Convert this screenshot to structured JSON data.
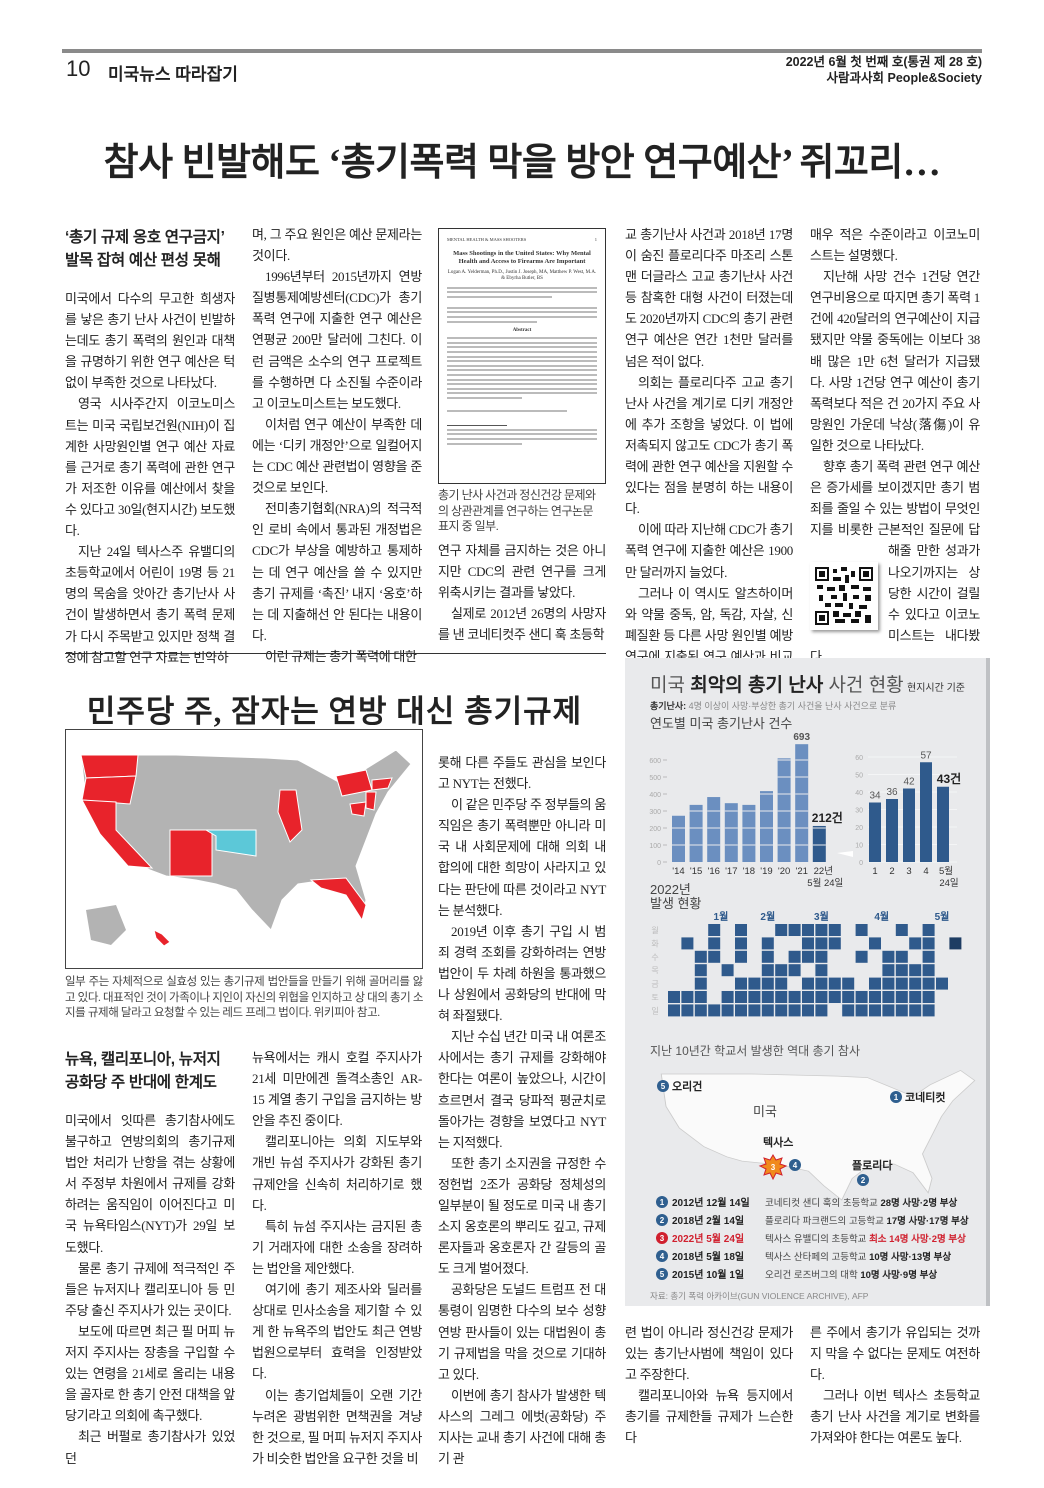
{
  "header": {
    "page_number": "10",
    "section": "미국뉴스 따라잡기",
    "issue": "2022년 6월 첫 번째 호(통권 제 28 호)",
    "publication": "사람과사회 People&Society"
  },
  "article1": {
    "headline": "참사 빈발해도 ‘총기폭력 막을 방안 연구예산’ 쥐꼬리…",
    "subhead": [
      "‘총기 규제 옹호 연구금지’",
      "발목 잡혀 예산 편성 못해"
    ],
    "columns": [
      [
        "미국에서 다수의 무고한 희생자를 낳은 총기 난사 사건이 빈발하는데도 총기 폭력의 원인과 대책을 규명하기 위한 연구 예산은 턱없이 부족한 것으로 나타났다.",
        "영국 시사주간지 이코노미스트는 미국 국립보건원(NIH)이 집계한 사망원인별 연구 예산 자료를 근거로 총기 폭력에 관한 연구가 저조한 이유를 예산에서 찾을 수 있다고 30일(현지시간) 보도했다.",
        "지난 24일 텍사스주 유밸디의 초등학교에서 어린이 19명 등 21명의 목숨을 앗아간 총기난사 사건이 발생하면서 총기 폭력 문제가 다시 주목받고 있지만 정책 결정에 참고할 연구 자료는 빈약하"
      ],
      [
        "며, 그 주요 원인은 예산 문제라는 것이다.",
        "1996년부터 2015년까지 연방 질병통제예방센터(CDC)가 총기 폭력 연구에 지출한 연구 예산은 연평균 200만 달러에 그친다. 이런 금액은 소수의 연구 프로젝트를 수행하면 다 소진될 수준이라고 이코노미스트는 보도했다.",
        "이처럼 연구 예산이 부족한 데에는 ‘디키 개정안’으로 일컬어지는 CDC 예산 관련법이 영향을 준 것으로 보인다.",
        "전미총기협회(NRA)의 적극적인 로비 속에서 통과된 개정법은 CDC가 부상을 예방하고 통제하는 데 연구 예산을 쓸 수 있지만 총기 규제를 ‘촉진’ 내지 ‘옹호’하는 데 지출해선 안 된다는 내용이다.",
        "이런 규제는 총기 폭력에 대한"
      ],
      [
        "연구 자체를 금지하는 것은 아니지만 CDC의 관련 연구를 크게 위축시키는 결과를 낳았다.",
        "실제로 2012년 26명의 사망자를 낸 코네티컷주 샌디 훅 초등학"
      ],
      [
        "교 총기난사 사건과 2018년 17명이 숨진 플로리다주 마조리 스톤맨 더글라스 고교 총기난사 사건 등 참혹한 대형 사건이 터졌는데도 2020년까지 CDC의 총기 관련 연구 예산은 연간 1천만 달러를 넘은 적이 없다.",
        "의회는 플로리다주 고교 총기난사 사건을 계기로 디키 개정안에 추가 조항을 넣었다. 이 법에 저촉되지 않고도 CDC가 총기 폭력에 관한 연구 예산을 지원할 수 있다는 점을 분명히 하는 내용이다.",
        "이에 따라 지난해 CDC가 총기 폭력 연구에 지출한 예산은 1900만 달러까지 늘었다.",
        "그러나 이 역시도 알츠하이머와 약물 중독, 암, 독감, 자살, 신폐질환 등 다른 사망 원인별 예방 연구에 지출된 연구 예산과 비교하면"
      ],
      [
        "매우 적은 수준이라고 이코노미스트는 설명했다.",
        "지난해 사망 건수 1건당 연간 연구비용으로 따지면 총기 폭력 1건에 420달러의 연구예산이 지급됐지만 약물 중독에는 이보다 38배 많은 1만 6천 달러가 지급됐다. 사망 1건당 연구 예산이 총기 폭력보다 적은 건 20가지 주요 사망원인 가운데 낙상(落傷)이 유일한 것으로 나타났다.",
        "향후 총기 폭력 관련 연구 예산은 증가세를 보이겠지만 총기 범죄를 줄일 수 있는 방법이 무엇인지를 비롯한 근본적인 질문에 답해줄 만한 성과가 나오기까지는 상당한 시간이 걸릴 수 있다고 이코노미스트는 내다봤다."
      ]
    ],
    "figure": {
      "running_head": "MENTAL HEALTH & MASS SHOOTERS",
      "page": "1",
      "title": "Mass Shootings in the United States: Why Mental Health and Access to Firearms Are Important",
      "authors": "Logan A. Yelderman, Ph.D., Justin J. Joseph, MA, Matthew P. West, M.A. & Ebyrha Butler, BS",
      "abstract_label": "Abstract",
      "caption": "총기 난사 사건과 정신건강 문제와의 상관관계를 연구하는 연구논문 표지 중 일부."
    },
    "qr_icon": "qr-code"
  },
  "article2": {
    "headline": "민주당 주, 잠자는 연방 대신 총기규제",
    "map_caption": "일부 주는 자체적으로 실효성 있는 총기규제 법안들을 만들기 위해 골머리를 앓고 있다. 대표적인 것이 가족이나 지인이 자신의 위협을 인지하고 상 대의 총기 소지를 규제해 달라고 요청할 수 있는 레드 프레그 법이다.   위키피아 참고.",
    "map_colors": {
      "highlight": "#e8232b",
      "oklahoma": "#5cc8d8",
      "other": "#b0b0b0"
    },
    "subhead": [
      "뉴욕, 캘리포니아, 뉴저지",
      "공화당 주 반대에 한계도"
    ],
    "columns": [
      [
        "미국에서 잇따른 총기참사에도 불구하고 연방의회의 총기규제 법안 처리가 난항을 겪는 상황에서 주정부 차원에서 규제를 강화하려는 움직임이 이어진다고 미국 뉴욕타임스(NYT)가 29일 보도했다.",
        "물론 총기 규제에 적극적인 주들은 뉴저지나 캘리포니아 등 민주당 출신 주지사가 있는 곳이다.",
        "보도에 따르면 최근 필 머피 뉴저지 주지사는 장총을 구입할 수 있는 연령을 21세로 올리는 내용을 골자로 한 총기 안전 대책을 앞당기라고 의회에 촉구했다.",
        "최근 버펄로 총기참사가 있었던"
      ],
      [
        "뉴욕에서는 캐시 호컬 주지사가 21세 미만에겐 돌격소총인 AR-15 계열 총기 구입을 금지하는 방안을 추진 중이다.",
        "캘리포니아는 의회 지도부와 개빈 뉴섬 주지사가 강화된 총기 규제안을 신속히 처리하기로 했다.",
        "특히 뉴섬 주지사는 금지된 총기 거래자에 대한 소송을 장려하는 법안을 제안했다.",
        "여기에 총기 제조사와 딜러를 상대로 민사소송을 제기할 수 있게 한 뉴욕주의 법안도 최근 연방법원으로부터 효력을 인정받았다.",
        "이는 총기업체들이 오랜 기간 누려온 광범위한 면책권을 겨냥한 것으로, 필 머피 뉴저지 주지사가 비슷한 법안을 요구한 것을 비"
      ],
      [
        "롯해 다른 주들도 관심을 보인다고 NYT는 전했다.",
        "이 같은 민주당 주 정부들의 움직임은 총기 폭력뿐만 아니라 미국 내 사회문제에 대해 의회 내 합의에 대한 희망이 사라지고 있다는 판단에 따른 것이라고 NYT는 분석했다.",
        "2019년 이후 총기 구입 시 범죄 경력 조회를 강화하려는 연방 법안이 두 차례 하원을 통과했으나 상원에서 공화당의 반대에 막혀 좌절됐다.",
        "지난 수십 년간 미국 내 여론조사에서는 총기 규제를 강화해야 한다는 여론이 높았으나, 시간이 흐르면서 결국 당파적 평균치로 돌아가는 경향을 보였다고 NYT는 지적했다.",
        "또한 총기 소지권을 규정한 수정헌법 2조가 공화당 정체성의 일부분이 될 정도로 미국 내 총기 소지 옹호론의 뿌리도 깊고, 규제론자들과 옹호론자 간 갈등의 골도 크게 벌어졌다.",
        "공화당은 도널드 트럼프 전 대통령이 임명한 다수의 보수 성향 연방 판사들이 있는 대법원이 총기 규제법을 막을 것으로 기대하고 있다.",
        "이번에 총기 참사가 발생한 텍사스의 그레그 에벗(공화당) 주지사는 교내 총기 사건에 대해 총기 관"
      ],
      [
        "련 법이 아니라 정신건강 문제가 있는 총기난사범에 책임이 있다고 주장한다.",
        "캘리포니아와 뉴욕 등지에서 총기를 규제한들 규제가 느슨한 다"
      ],
      [
        "른 주에서 총기가 유입되는 것까지 막을 수 없다는 문제도 여전하다.",
        "그러나 이번 텍사스 초등학교 총기 난사 사건을 계기로 변화를 가져와야 한다는 여론도 높다."
      ]
    ]
  },
  "infographic": {
    "title_pre": "미국 ",
    "title_bold": "최악의 총기 난사",
    "title_post": " 사건 현황",
    "basis": "현지시간 기준",
    "definition_label": "총기난사:",
    "definition": " 4명 이상이 사망·부상한 총기 사건을 난사 사건으로 분류",
    "calendar_title": [
      "2022년",
      "발생 현황"
    ],
    "months": [
      "1월",
      "2월",
      "3월",
      "4월",
      "5월"
    ],
    "weekdays": [
      "월",
      "화",
      "수",
      "목",
      "금",
      "토",
      "일"
    ],
    "calendar": [
      "0001010011111010010100",
      "0101010100111001001102",
      "0011010101110010110100",
      "0010100111010000111100",
      "0010011110111101111110",
      "1110111111111111111100",
      "1111111111110111111100"
    ],
    "map_title": "지난 10년간 학교서 발생한 역대 총기 참사",
    "map_labels": {
      "country": "미국",
      "oregon": "오리건",
      "connecticut": "코네티컷",
      "texas": "텍사스",
      "florida": "플로리다"
    },
    "incidents": [
      {
        "n": "1",
        "date": "2012년 12월 14일",
        "place": "코네티컷 샌디 훅의 초등학교 ",
        "toll": "28명 사망·2명 부상",
        "color": "#2f5f8f"
      },
      {
        "n": "2",
        "date": "2018년 2월 14일",
        "place": "플로리다 파크랜드의 고등학교 ",
        "toll": "17명 사망·17명 부상",
        "color": "#2f5f8f"
      },
      {
        "n": "3",
        "date": "2022년 5월 24일",
        "place": "텍사스 유밸디의 초등학교 ",
        "toll": "최소 14명 사망·2명 부상",
        "color": "#d0202e"
      },
      {
        "n": "4",
        "date": "2018년 5월 18일",
        "place": "텍사스 산타페의 고등학교 ",
        "toll": "10명 사망·13명 부상",
        "color": "#2f5f8f"
      },
      {
        "n": "5",
        "date": "2015년 10월 1일",
        "place": "오리건 로즈버그의 대학 ",
        "toll": "10명 사망·9명 부상",
        "color": "#2f5f8f"
      }
    ],
    "source": "자료: 총기 폭력 아카이브(GUN VIOLENCE ARCHIVE), AFP",
    "colors": {
      "bar": "#6b8fc0",
      "bar_dark": "#2f5a8c",
      "highlight": "#d0202e",
      "background": "#e9eaec"
    }
  },
  "chart_data": [
    {
      "type": "bar",
      "title": "연도별 미국 총기난사 건수",
      "categories": [
        "'14",
        "'15",
        "'16",
        "'17",
        "'18",
        "'19",
        "'20",
        "'21",
        "22년 5월 24일"
      ],
      "values": [
        272,
        336,
        382,
        346,
        336,
        417,
        610,
        693,
        212
      ],
      "data_labels": {
        "7": "693",
        "8": "212건"
      },
      "yticks": [
        "0",
        "100",
        "200",
        "300",
        "400",
        "500",
        "600"
      ],
      "ylim": [
        0,
        700
      ]
    },
    {
      "type": "bar",
      "title": "",
      "categories": [
        "1",
        "2",
        "3",
        "4",
        "5월 24일"
      ],
      "values": [
        34,
        36,
        42,
        57,
        43
      ],
      "data_labels": [
        "34",
        "36",
        "42",
        "57",
        "43건"
      ],
      "yticks": [
        "0",
        "10",
        "20",
        "30",
        "40",
        "50",
        "60"
      ],
      "ylim": [
        0,
        65
      ]
    }
  ]
}
